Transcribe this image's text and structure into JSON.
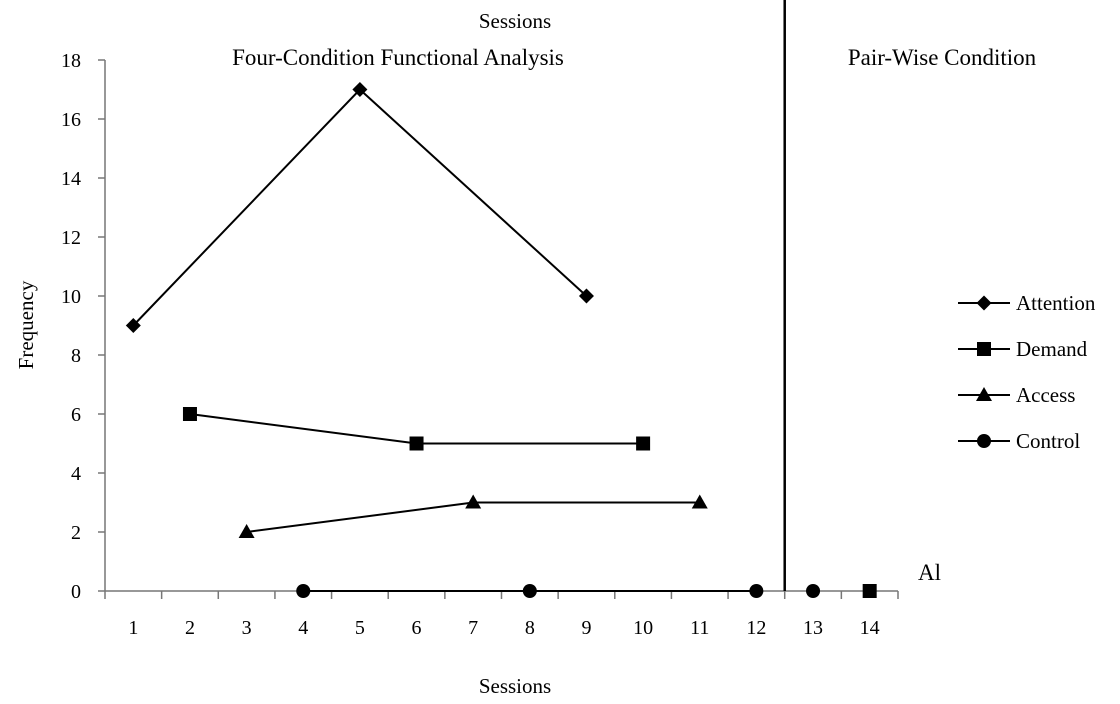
{
  "chart_data": {
    "type": "line",
    "top_title": "Sessions",
    "xlabel": "Sessions",
    "ylabel": "Frequency",
    "ylim": [
      0,
      18
    ],
    "yticks": [
      0,
      2,
      4,
      6,
      8,
      10,
      12,
      14,
      16,
      18
    ],
    "x_categories": [
      "1",
      "2",
      "3",
      "4",
      "5",
      "6",
      "7",
      "8",
      "9",
      "10",
      "11",
      "12",
      "13",
      "14"
    ],
    "phase_change_after_session": 12,
    "phases": [
      {
        "label": "Four-Condition Functional Analysis"
      },
      {
        "label": "Pair-Wise Condition"
      }
    ],
    "subject_label": "Al",
    "legend_position": "right",
    "series": [
      {
        "name": "Attention",
        "marker": "diamond",
        "segments": [
          [
            {
              "x": 1,
              "y": 9
            },
            {
              "x": 5,
              "y": 17
            },
            {
              "x": 9,
              "y": 10
            }
          ]
        ]
      },
      {
        "name": "Demand",
        "marker": "square",
        "segments": [
          [
            {
              "x": 2,
              "y": 6
            },
            {
              "x": 6,
              "y": 5
            },
            {
              "x": 10,
              "y": 5
            }
          ],
          [
            {
              "x": 14,
              "y": 0
            }
          ]
        ]
      },
      {
        "name": "Access",
        "marker": "triangle",
        "segments": [
          [
            {
              "x": 3,
              "y": 2
            },
            {
              "x": 7,
              "y": 3
            },
            {
              "x": 11,
              "y": 3
            }
          ]
        ]
      },
      {
        "name": "Control",
        "marker": "circle",
        "segments": [
          [
            {
              "x": 4,
              "y": 0
            },
            {
              "x": 8,
              "y": 0
            },
            {
              "x": 12,
              "y": 0
            }
          ],
          [
            {
              "x": 13,
              "y": 0
            }
          ]
        ]
      }
    ]
  }
}
